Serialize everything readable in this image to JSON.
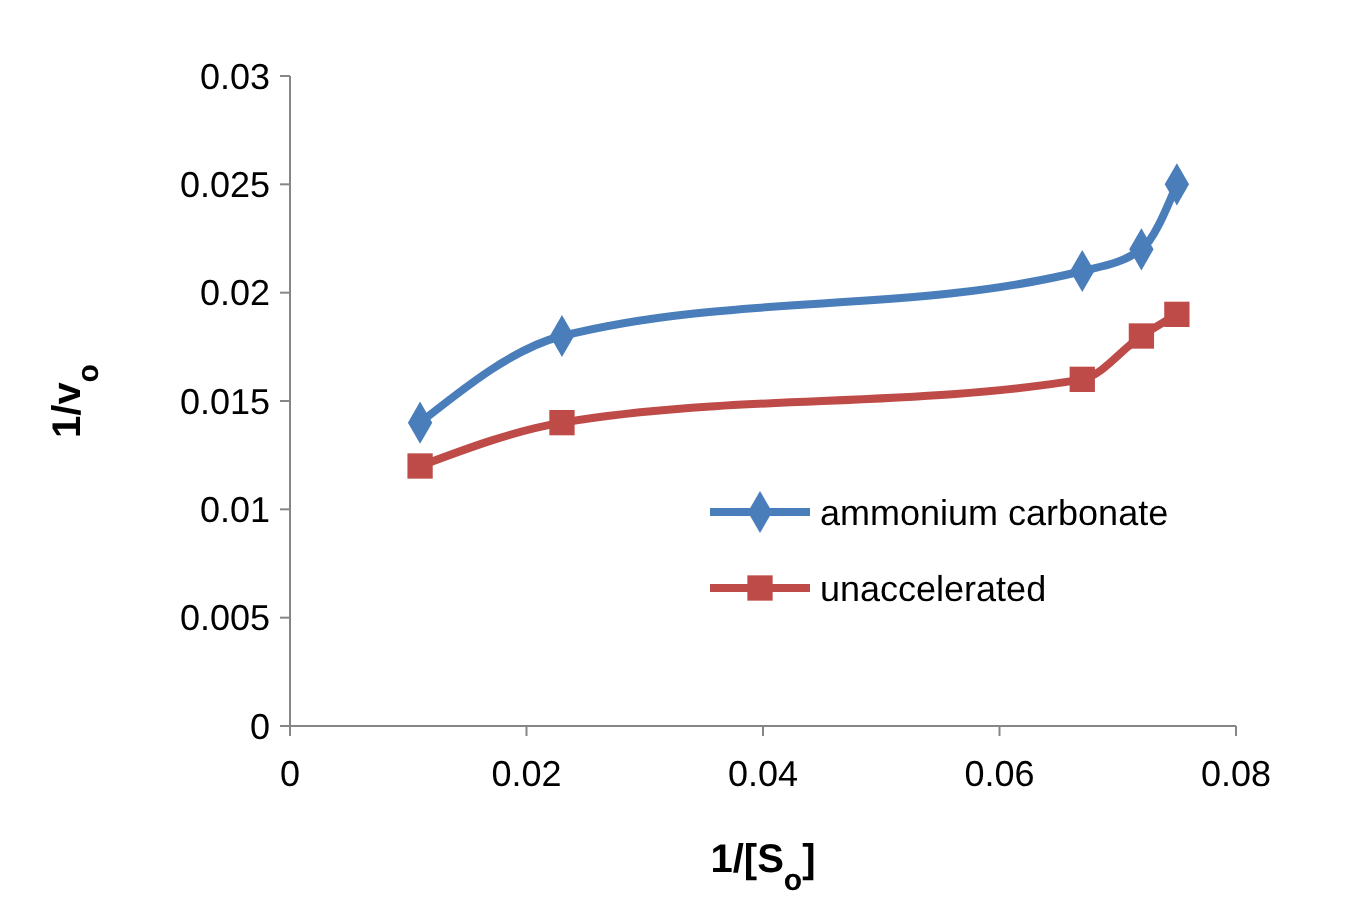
{
  "chart_data": {
    "type": "line",
    "xlabel": "1/[S$_{o}$]",
    "ylabel": "1/v$_{o}$",
    "xlim": [
      0,
      0.08
    ],
    "xticks": [
      0,
      0.02,
      0.04,
      0.06,
      0.08
    ],
    "ylim": [
      0,
      0.03
    ],
    "yticks": [
      0,
      0.005,
      0.01,
      0.015,
      0.02,
      0.025,
      0.03
    ],
    "legend": "right",
    "grid": false,
    "series": [
      {
        "name": "ammonium carbonate",
        "color": "#4a7ebb",
        "marker": "diamond",
        "x": [
          0.011,
          0.023,
          0.067,
          0.072,
          0.075
        ],
        "values": [
          0.014,
          0.018,
          0.021,
          0.022,
          0.025
        ]
      },
      {
        "name": "unaccelerated",
        "color": "#be4b48",
        "marker": "square",
        "x": [
          0.011,
          0.023,
          0.067,
          0.072,
          0.075
        ],
        "values": [
          0.012,
          0.014,
          0.016,
          0.018,
          0.019
        ]
      }
    ]
  }
}
